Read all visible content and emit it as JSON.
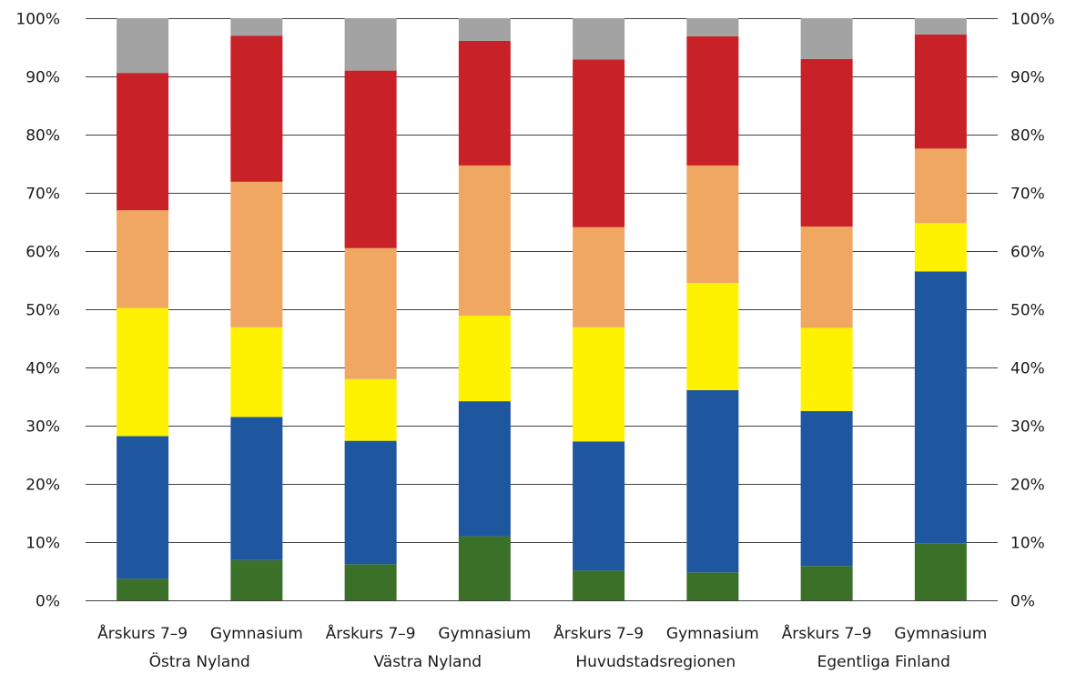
{
  "chart_data": {
    "type": "bar",
    "stacked": true,
    "percent": true,
    "ylim": [
      0,
      100
    ],
    "y_ticks": [
      "0%",
      "10%",
      "20%",
      "30%",
      "40%",
      "50%",
      "60%",
      "70%",
      "80%",
      "90%",
      "100%"
    ],
    "y_tick_values": [
      0,
      10,
      20,
      30,
      40,
      50,
      60,
      70,
      80,
      90,
      100
    ],
    "grid": true,
    "legend": "none",
    "categories": [
      "Årskurs 7–9",
      "Gymnasium",
      "Årskurs 7–9",
      "Gymnasium",
      "Årskurs 7–9",
      "Gymnasium",
      "Årskurs 7–9",
      "Gymnasium"
    ],
    "groups": [
      {
        "label": "Östra Nyland",
        "span": [
          0,
          1
        ]
      },
      {
        "label": "Västra Nyland",
        "span": [
          2,
          3
        ]
      },
      {
        "label": "Huvudstadsregionen",
        "span": [
          4,
          5
        ]
      },
      {
        "label": "Egentliga Finland",
        "span": [
          6,
          7
        ]
      }
    ],
    "series": [
      {
        "color": "#3a7027",
        "values": [
          3.7,
          6.9,
          6.2,
          11.0,
          5.1,
          4.8,
          5.9,
          9.8
        ]
      },
      {
        "color": "#1e56a0",
        "values": [
          24.5,
          24.6,
          21.2,
          23.2,
          22.2,
          31.3,
          26.6,
          46.7
        ]
      },
      {
        "color": "#fff200",
        "values": [
          22.0,
          15.4,
          10.6,
          14.7,
          19.6,
          18.4,
          14.3,
          8.3
        ]
      },
      {
        "color": "#f0a762",
        "values": [
          16.8,
          25.0,
          22.5,
          25.8,
          17.2,
          20.2,
          17.4,
          12.8
        ]
      },
      {
        "color": "#c82127",
        "values": [
          23.6,
          25.1,
          30.5,
          21.4,
          28.8,
          22.2,
          28.8,
          19.6
        ]
      },
      {
        "color": "#a3a3a3",
        "values": [
          9.4,
          3.0,
          9.0,
          3.9,
          7.1,
          3.1,
          7.0,
          2.8
        ]
      }
    ]
  }
}
